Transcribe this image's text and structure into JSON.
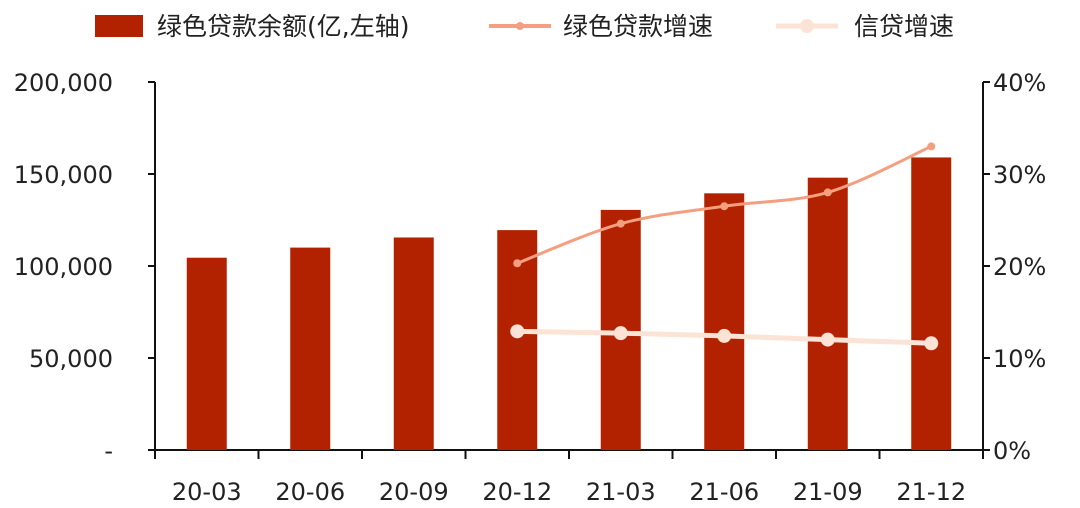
{
  "chart_data": {
    "type": "bar",
    "title": "",
    "xlabel": "",
    "ylabel": "",
    "categories": [
      "20-03",
      "20-06",
      "20-09",
      "20-12",
      "21-03",
      "21-06",
      "21-09",
      "21-12"
    ],
    "ylim": [
      0,
      200000
    ],
    "ylim_right": [
      0,
      40
    ],
    "y_ticks": [
      "-",
      "50,000",
      "100,000",
      "150,000",
      "200,000"
    ],
    "y_right_ticks": [
      "0%",
      "10%",
      "20%",
      "30%",
      "40%"
    ],
    "grid": false,
    "legend_position": "top",
    "series": [
      {
        "name": "绿色贷款余额(亿,左轴)",
        "type": "bar",
        "axis": "left",
        "color": "#b22200",
        "values": [
          104500,
          110000,
          115500,
          119500,
          130500,
          139500,
          148000,
          159000
        ]
      },
      {
        "name": "绿色贷款增速",
        "type": "line",
        "axis": "right",
        "color": "#f4a080",
        "values": [
          null,
          null,
          null,
          20.3,
          24.6,
          26.5,
          28.0,
          33.0
        ]
      },
      {
        "name": "信贷增速",
        "type": "line",
        "axis": "right",
        "color": "#fbe3d6",
        "values": [
          null,
          null,
          null,
          12.9,
          12.7,
          12.4,
          12.0,
          11.6
        ]
      }
    ]
  }
}
